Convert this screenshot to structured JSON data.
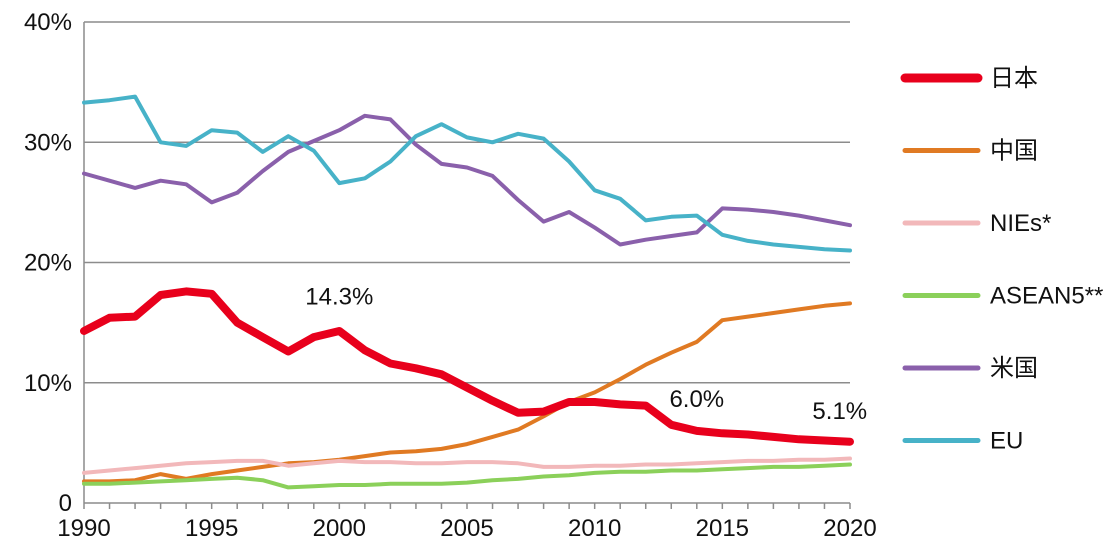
{
  "chart_data": {
    "type": "line",
    "x": [
      1990,
      1991,
      1992,
      1993,
      1994,
      1995,
      1996,
      1997,
      1998,
      1999,
      2000,
      2001,
      2002,
      2003,
      2004,
      2005,
      2006,
      2007,
      2008,
      2009,
      2010,
      2011,
      2012,
      2013,
      2014,
      2015,
      2016,
      2017,
      2018,
      2019,
      2020
    ],
    "xticks": [
      1990,
      1995,
      2000,
      2005,
      2010,
      2015,
      2020
    ],
    "xlim": [
      1990,
      2020
    ],
    "yticks": [
      0,
      10,
      20,
      30,
      40
    ],
    "ytick_labels": [
      "0",
      "10%",
      "20%",
      "30%",
      "40%"
    ],
    "ylim": [
      0,
      40
    ],
    "grid": "horizontal",
    "legend_position": "right",
    "series": [
      {
        "name": "日本",
        "color": "#e8001c",
        "width": 8,
        "values": [
          14.3,
          15.4,
          15.5,
          17.3,
          17.6,
          17.4,
          15.0,
          13.8,
          12.6,
          13.8,
          14.3,
          12.7,
          11.6,
          11.2,
          10.7,
          9.6,
          8.5,
          7.5,
          7.6,
          8.4,
          8.4,
          8.2,
          8.1,
          6.5,
          6.0,
          5.8,
          5.7,
          5.5,
          5.3,
          5.2,
          5.1
        ]
      },
      {
        "name": "中国",
        "color": "#e07a23",
        "width": 4,
        "values": [
          1.8,
          1.8,
          1.9,
          2.4,
          2.0,
          2.4,
          2.7,
          3.0,
          3.3,
          3.4,
          3.6,
          3.9,
          4.2,
          4.3,
          4.5,
          4.9,
          5.5,
          6.1,
          7.2,
          8.4,
          9.2,
          10.3,
          11.5,
          12.5,
          13.4,
          15.2,
          15.5,
          15.8,
          16.1,
          16.4,
          16.6
        ]
      },
      {
        "name": "NIEs*",
        "color": "#f2b8ba",
        "width": 4,
        "values": [
          2.5,
          2.7,
          2.9,
          3.1,
          3.3,
          3.4,
          3.5,
          3.5,
          3.1,
          3.3,
          3.5,
          3.4,
          3.4,
          3.3,
          3.3,
          3.4,
          3.4,
          3.3,
          3.0,
          3.0,
          3.1,
          3.1,
          3.2,
          3.2,
          3.3,
          3.4,
          3.5,
          3.5,
          3.6,
          3.6,
          3.7
        ]
      },
      {
        "name": "ASEAN5**",
        "color": "#8bd05a",
        "width": 4,
        "values": [
          1.6,
          1.6,
          1.7,
          1.8,
          1.9,
          2.0,
          2.1,
          1.9,
          1.3,
          1.4,
          1.5,
          1.5,
          1.6,
          1.6,
          1.6,
          1.7,
          1.9,
          2.0,
          2.2,
          2.3,
          2.5,
          2.6,
          2.6,
          2.7,
          2.7,
          2.8,
          2.9,
          3.0,
          3.0,
          3.1,
          3.2
        ]
      },
      {
        "name": "米国",
        "color": "#8a60ab",
        "width": 4,
        "values": [
          27.4,
          26.8,
          26.2,
          26.8,
          26.5,
          25.0,
          25.8,
          27.6,
          29.2,
          30.1,
          31.0,
          32.2,
          31.9,
          29.8,
          28.2,
          27.9,
          27.2,
          25.2,
          23.4,
          24.2,
          22.9,
          21.5,
          21.9,
          22.2,
          22.5,
          24.5,
          24.4,
          24.2,
          23.9,
          23.5,
          23.1
        ]
      },
      {
        "name": "EU",
        "color": "#47b2c8",
        "width": 4,
        "values": [
          33.3,
          33.5,
          33.8,
          30.0,
          29.7,
          31.0,
          30.8,
          29.2,
          30.5,
          29.3,
          26.6,
          27.0,
          28.4,
          30.5,
          31.5,
          30.4,
          30.0,
          30.7,
          30.3,
          28.4,
          26.0,
          25.3,
          23.5,
          23.8,
          23.9,
          22.3,
          21.8,
          21.5,
          21.3,
          21.1,
          21.0
        ]
      }
    ],
    "annotations": [
      {
        "text": "14.3%",
        "x": 2000,
        "y": 16.5
      },
      {
        "text": "6.0%",
        "x": 2014,
        "y": 8.0
      },
      {
        "text": "5.1%",
        "x": 2019.6,
        "y": 7.0
      }
    ]
  }
}
